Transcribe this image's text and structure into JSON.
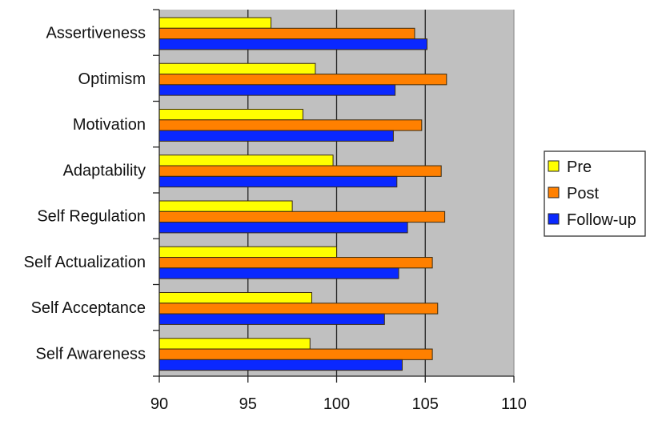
{
  "chart_data": {
    "type": "bar",
    "orientation": "horizontal",
    "title": "",
    "xlabel": "",
    "ylabel": "",
    "xlim": [
      90,
      110
    ],
    "xticks": [
      90,
      95,
      100,
      105,
      110
    ],
    "grid": true,
    "plot_background": "#c0c0c0",
    "legend_position": "right",
    "categories": [
      "Assertiveness",
      "Optimism",
      "Motivation",
      "Adaptability",
      "Self Regulation",
      "Self Actualization",
      "Self Acceptance",
      "Self Awareness"
    ],
    "series": [
      {
        "name": "Pre",
        "color": "#ffff00",
        "values": [
          96.3,
          98.8,
          98.1,
          99.8,
          97.5,
          100.0,
          98.6,
          98.5
        ]
      },
      {
        "name": "Post",
        "color": "#ff8000",
        "values": [
          104.4,
          106.2,
          104.8,
          105.9,
          106.1,
          105.4,
          105.7,
          105.4
        ]
      },
      {
        "name": "Follow-up",
        "color": "#0a28ff",
        "values": [
          105.1,
          103.3,
          103.2,
          103.4,
          104.0,
          103.5,
          102.7,
          103.7
        ]
      }
    ]
  }
}
